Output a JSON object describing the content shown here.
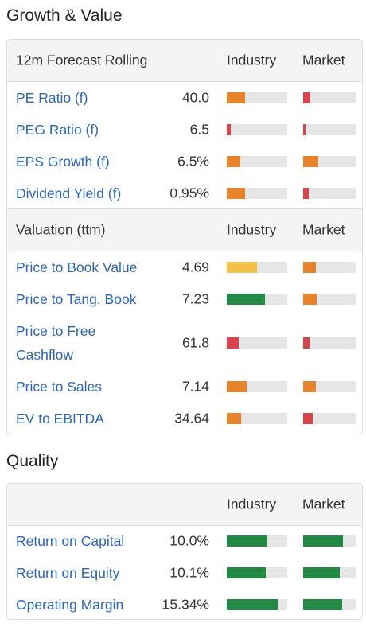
{
  "colors": {
    "red": "#d9434b",
    "orange": "#e6832b",
    "yellow": "#f0c24a",
    "green": "#238a45",
    "track": "#e6e6e6",
    "link": "#2f66b0"
  },
  "growth_value": {
    "title": "Growth & Value",
    "forecast": {
      "header": "12m Forecast Rolling",
      "industry_label": "Industry",
      "market_label": "Market",
      "rows": [
        {
          "label": "PE Ratio (f)",
          "value": "40.0",
          "industry": {
            "fraction": 0.3,
            "color": "orange"
          },
          "market": {
            "fraction": 0.13,
            "color": "red"
          }
        },
        {
          "label": "PEG Ratio (f)",
          "value": "6.5",
          "industry": {
            "fraction": 0.07,
            "color": "red"
          },
          "market": {
            "fraction": 0.04,
            "color": "red"
          }
        },
        {
          "label": "EPS Growth (f)",
          "value": "6.5%",
          "industry": {
            "fraction": 0.22,
            "color": "orange"
          },
          "market": {
            "fraction": 0.29,
            "color": "orange"
          }
        },
        {
          "label": "Dividend Yield (f)",
          "value": "0.95%",
          "industry": {
            "fraction": 0.3,
            "color": "orange"
          },
          "market": {
            "fraction": 0.11,
            "color": "red"
          }
        }
      ]
    },
    "valuation": {
      "header": "Valuation (ttm)",
      "industry_label": "Industry",
      "market_label": "Market",
      "rows": [
        {
          "label": "Price to Book Value",
          "value": "4.69",
          "industry": {
            "fraction": 0.5,
            "color": "yellow"
          },
          "market": {
            "fraction": 0.24,
            "color": "orange"
          }
        },
        {
          "label": "Price to Tang. Book",
          "value": "7.23",
          "industry": {
            "fraction": 0.63,
            "color": "green"
          },
          "market": {
            "fraction": 0.26,
            "color": "orange"
          }
        },
        {
          "label": "Price to Free Cashflow",
          "value": "61.8",
          "industry": {
            "fraction": 0.2,
            "color": "red"
          },
          "market": {
            "fraction": 0.12,
            "color": "red"
          }
        },
        {
          "label": "Price to Sales",
          "value": "7.14",
          "industry": {
            "fraction": 0.33,
            "color": "orange"
          },
          "market": {
            "fraction": 0.24,
            "color": "orange"
          }
        },
        {
          "label": "EV to EBITDA",
          "value": "34.64",
          "industry": {
            "fraction": 0.24,
            "color": "orange"
          },
          "market": {
            "fraction": 0.18,
            "color": "red"
          }
        }
      ]
    }
  },
  "quality": {
    "title": "Quality",
    "header": "",
    "industry_label": "Industry",
    "market_label": "Market",
    "rows": [
      {
        "label": "Return on Capital",
        "value": "10.0%",
        "industry": {
          "fraction": 0.67,
          "color": "green"
        },
        "market": {
          "fraction": 0.76,
          "color": "green"
        }
      },
      {
        "label": "Return on Equity",
        "value": "10.1%",
        "industry": {
          "fraction": 0.64,
          "color": "green"
        },
        "market": {
          "fraction": 0.7,
          "color": "green"
        }
      },
      {
        "label": "Operating Margin",
        "value": "15.34%",
        "industry": {
          "fraction": 0.84,
          "color": "green"
        },
        "market": {
          "fraction": 0.74,
          "color": "green"
        }
      }
    ]
  }
}
